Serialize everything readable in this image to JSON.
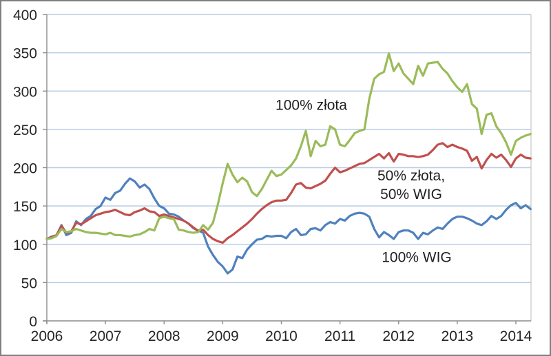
{
  "chart_data": {
    "type": "line",
    "title": "",
    "x_start": "2006-01",
    "x_interval": "monthly",
    "x_tick_labels": [
      "2006",
      "2007",
      "2008",
      "2009",
      "2010",
      "2011",
      "2012",
      "2013",
      "2014"
    ],
    "y_ticks": [
      0,
      50,
      100,
      150,
      200,
      250,
      300,
      350,
      400
    ],
    "ylim": [
      0,
      400
    ],
    "grid": "horizontal",
    "legend_position": "none (inline labels)",
    "series": [
      {
        "name": "100% WIG",
        "color": "#4F81BD",
        "values": [
          107,
          110,
          112,
          125,
          112,
          115,
          130,
          125,
          133,
          137,
          146,
          150,
          161,
          158,
          167,
          170,
          179,
          186,
          182,
          174,
          178,
          172,
          160,
          150,
          147,
          140,
          139,
          136,
          131,
          127,
          121,
          118,
          115,
          97,
          86,
          77,
          71,
          62,
          67,
          84,
          82,
          93,
          100,
          106,
          107,
          111,
          110,
          111,
          111,
          108,
          116,
          120,
          112,
          113,
          120,
          121,
          118,
          125,
          129,
          127,
          133,
          131,
          137,
          140,
          141,
          140,
          136,
          120,
          109,
          116,
          112,
          107,
          116,
          118,
          118,
          115,
          107,
          115,
          113,
          118,
          122,
          120,
          127,
          133,
          136,
          136,
          134,
          131,
          127,
          125,
          130,
          137,
          133,
          137,
          145,
          151,
          154,
          147,
          151,
          146
        ]
      },
      {
        "name": "50% złota, 50% WIG",
        "color": "#C0504D",
        "values": [
          107,
          109,
          112,
          124,
          115,
          117,
          128,
          126,
          130,
          134,
          138,
          140,
          142,
          143,
          145,
          142,
          139,
          138,
          142,
          144,
          147,
          143,
          142,
          137,
          139,
          137,
          135,
          133,
          131,
          127,
          122,
          117,
          119,
          112,
          107,
          104,
          102,
          108,
          112,
          117,
          122,
          127,
          133,
          140,
          146,
          151,
          155,
          157,
          157,
          158,
          167,
          178,
          180,
          174,
          173,
          176,
          179,
          183,
          192,
          200,
          194,
          196,
          199,
          202,
          205,
          206,
          210,
          214,
          218,
          212,
          219,
          208,
          218,
          217,
          215,
          215,
          214,
          215,
          217,
          223,
          230,
          232,
          227,
          230,
          227,
          225,
          222,
          209,
          214,
          199,
          210,
          218,
          213,
          217,
          210,
          201,
          212,
          217,
          213,
          212
        ]
      },
      {
        "name": "100% złota",
        "color": "#9BBB59",
        "values": [
          107,
          108,
          111,
          120,
          116,
          117,
          120,
          118,
          116,
          115,
          115,
          114,
          113,
          115,
          112,
          112,
          111,
          110,
          112,
          113,
          116,
          120,
          118,
          134,
          136,
          134,
          133,
          119,
          118,
          116,
          115,
          116,
          125,
          119,
          128,
          152,
          180,
          205,
          191,
          181,
          187,
          182,
          168,
          163,
          172,
          184,
          196,
          189,
          191,
          197,
          203,
          212,
          228,
          248,
          215,
          235,
          228,
          230,
          254,
          250,
          230,
          228,
          236,
          245,
          248,
          250,
          290,
          316,
          322,
          325,
          349,
          326,
          336,
          323,
          316,
          309,
          333,
          320,
          336,
          337,
          338,
          329,
          323,
          313,
          305,
          299,
          309,
          283,
          277,
          244,
          269,
          271,
          254,
          245,
          233,
          217,
          235,
          239,
          242,
          244
        ]
      }
    ],
    "annotations": [
      {
        "text": "100% złota"
      },
      {
        "text": "50% złota,"
      },
      {
        "text": "50% WIG"
      },
      {
        "text": "100% WIG"
      }
    ]
  },
  "colors": {
    "blue_series": "#4F81BD",
    "red_series": "#C0504D",
    "green_series": "#9BBB59",
    "gridline": "#B8CCE4",
    "axis": "#8C8C8C",
    "plot_right_border": "#C6C6C6",
    "text": "#262626",
    "frame_border": "#7F7F7F",
    "background": "#FFFFFF"
  }
}
